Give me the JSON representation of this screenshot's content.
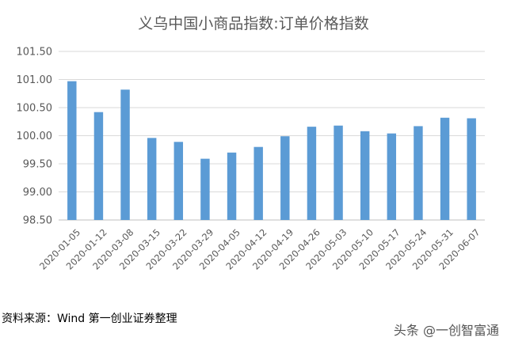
{
  "chart_data": {
    "type": "bar",
    "title": "义乌中国小商品指数:订单价格指数",
    "categories": [
      "2020-01-05",
      "2020-01-12",
      "2020-03-08",
      "2020-03-15",
      "2020-03-22",
      "2020-03-29",
      "2020-04-05",
      "2020-04-12",
      "2020-04-19",
      "2020-04-26",
      "2020-05-03",
      "2020-05-10",
      "2020-05-17",
      "2020-05-24",
      "2020-05-31",
      "2020-06-07"
    ],
    "values": [
      100.97,
      100.42,
      100.82,
      99.96,
      99.89,
      99.59,
      99.7,
      99.8,
      99.99,
      100.16,
      100.18,
      100.08,
      100.04,
      100.17,
      100.32,
      100.31
    ],
    "ylim": [
      98.5,
      101.5
    ],
    "yticks": [
      "98.50",
      "99.00",
      "99.50",
      "100.00",
      "100.50",
      "101.00",
      "101.50"
    ],
    "xlabel": "",
    "ylabel": "",
    "grid": "horizontal",
    "bar_color": "#5b9bd5"
  },
  "source_note": "资料来源：Wind 第一创业证券整理",
  "watermark": "头条 @一创智富通"
}
